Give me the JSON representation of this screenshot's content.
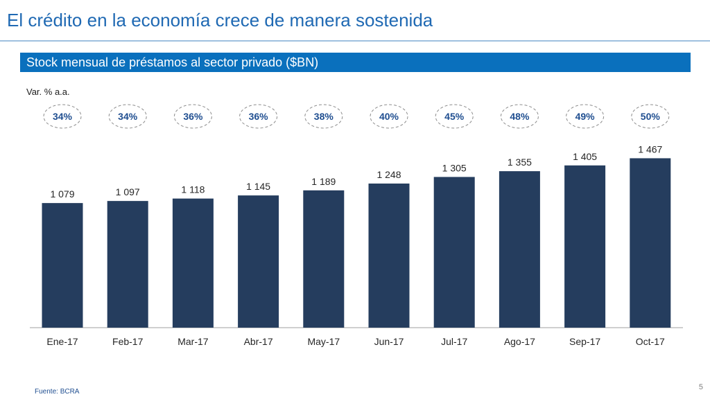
{
  "title": "El crédito en la economía crece de manera sostenida",
  "subtitle": "Stock mensual de préstamos al sector privado ($BN)",
  "growth_label": "Var. % a.a.",
  "source": "Fuente: BCRA",
  "page_number": "5",
  "colors": {
    "title": "#1f69b3",
    "banner": "#0a70bd",
    "bar": "#253d5e",
    "bubble_text": "#1f4e90"
  },
  "chart_data": {
    "type": "bar",
    "title": "Stock mensual de préstamos al sector privado ($BN)",
    "xlabel": "",
    "ylabel": "",
    "ylim": [
      0,
      1500
    ],
    "grid": false,
    "categories": [
      "Ene-17",
      "Feb-17",
      "Mar-17",
      "Abr-17",
      "May-17",
      "Jun-17",
      "Jul-17",
      "Ago-17",
      "Sep-17",
      "Oct-17"
    ],
    "values": [
      1079,
      1097,
      1118,
      1145,
      1189,
      1248,
      1305,
      1355,
      1405,
      1467
    ],
    "value_labels": [
      "1 079",
      "1 097",
      "1 118",
      "1 145",
      "1 189",
      "1 248",
      "1 305",
      "1 355",
      "1 405",
      "1 467"
    ],
    "growth_yoy": [
      "34%",
      "34%",
      "36%",
      "36%",
      "38%",
      "40%",
      "45%",
      "48%",
      "49%",
      "50%"
    ]
  }
}
